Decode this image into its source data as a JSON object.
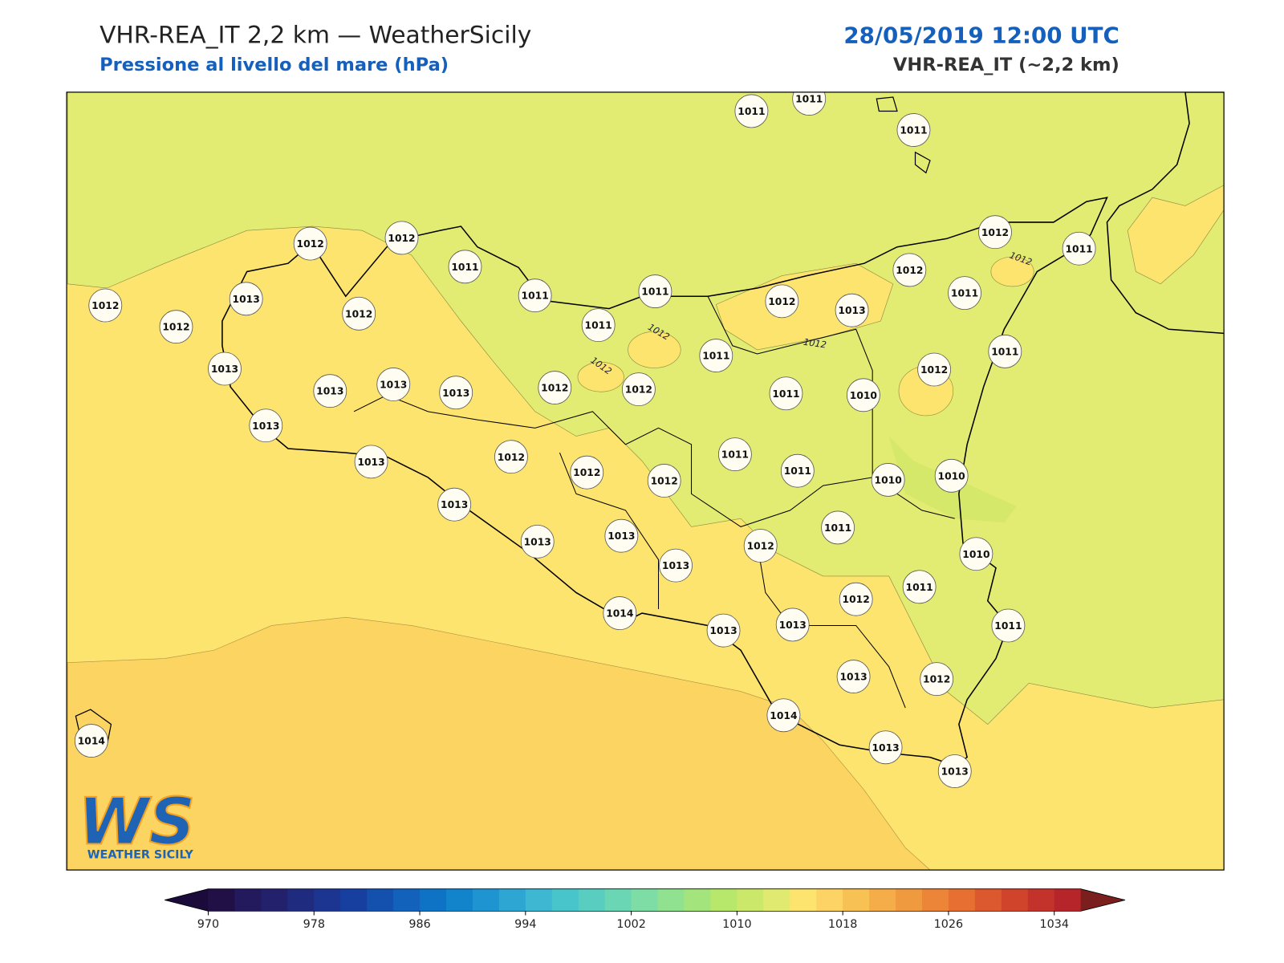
{
  "header": {
    "title": "VHR-REA_IT 2,2 km — WeatherSicily",
    "subtitle": "Pressione al livello del mare (hPa)",
    "datetime": "28/05/2019 12:00 UTC",
    "model": "VHR-REA_IT (~2,2 km)"
  },
  "map": {
    "stations": [
      1011,
      1011,
      1011,
      1012,
      1012,
      1011,
      1011,
      1011,
      1011,
      1012,
      1011,
      1012,
      1011,
      1012,
      1013,
      1012,
      1012,
      1013,
      1012,
      1013,
      1013,
      1013,
      1013,
      1012,
      1012,
      1011,
      1011,
      1010,
      1012,
      1011,
      1013,
      1013,
      1012,
      1012,
      1012,
      1011,
      1011,
      1010,
      1010,
      1013,
      1013,
      1013,
      1013,
      1012,
      1011,
      1010,
      1011,
      1012,
      1014,
      1013,
      1013,
      1011,
      1013,
      1012,
      1014,
      1013,
      1013,
      1014
    ],
    "contour_labels": [
      1012,
      1012,
      1012,
      1012
    ]
  },
  "colorbar": {
    "clim": [
      970,
      1036
    ],
    "ticks": [
      970,
      978,
      986,
      994,
      1002,
      1010,
      1018,
      1026,
      1034
    ],
    "colors": [
      "#211046",
      "#221a5c",
      "#23216c",
      "#1f2b7e",
      "#1b3590",
      "#163f9f",
      "#1450ad",
      "#1262bb",
      "#0f73c5",
      "#1284cc",
      "#1e94d0",
      "#2ea6d3",
      "#3db7d2",
      "#48c4cb",
      "#58cdc0",
      "#6ad6b3",
      "#7ddda4",
      "#90e290",
      "#a3e47d",
      "#b7e86c",
      "#cce86a",
      "#e0ea71",
      "#fde46e",
      "#fcd364",
      "#f8c154",
      "#f4ad48",
      "#f09a3f",
      "#ec8537",
      "#e66f31",
      "#dc582e",
      "#d0442c",
      "#c3322b",
      "#b52529"
    ],
    "extend_colors": [
      "#1a0b3a",
      "#7a1e1e"
    ]
  },
  "logo": {
    "mark": "WS",
    "text": "WEATHER SICILY"
  }
}
